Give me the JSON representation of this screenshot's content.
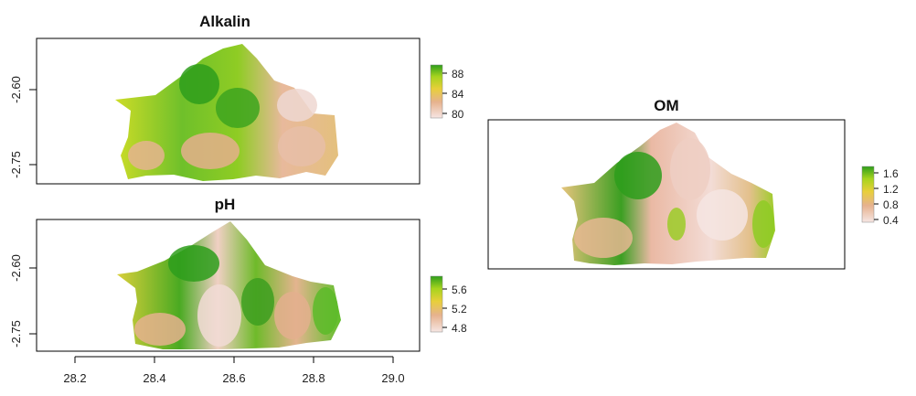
{
  "panels": [
    {
      "title": "Alkalin",
      "y_ticks": [
        "-2.60",
        "-2.75"
      ],
      "legend_ticks": [
        "88",
        "84",
        "80"
      ],
      "legend_values": [
        88,
        84,
        80
      ]
    },
    {
      "title": "pH",
      "y_ticks": [
        "-2.60",
        "-2.75"
      ],
      "x_ticks": [
        "28.2",
        "28.4",
        "28.6",
        "28.8",
        "29.0"
      ],
      "legend_ticks": [
        "5.6",
        "5.2",
        "4.8"
      ],
      "legend_values": [
        5.6,
        5.2,
        4.8
      ]
    },
    {
      "title": "OM",
      "legend_ticks": [
        "1.6",
        "1.2",
        "0.8",
        "0.4"
      ],
      "legend_values": [
        1.6,
        1.2,
        0.8,
        0.4
      ]
    }
  ],
  "colors": {
    "high": "#2e9e1c",
    "mid_high": "#a6d41e",
    "mid": "#e8cf3a",
    "low": "#e6b28e",
    "lowest": "#f6e6e3"
  }
}
